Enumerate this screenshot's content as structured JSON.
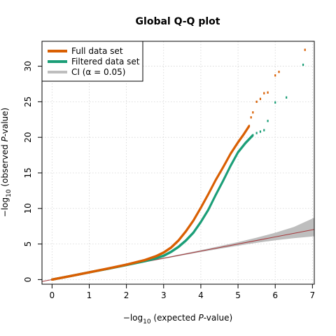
{
  "chart_data": {
    "type": "scatter",
    "title": "Global Q-Q plot",
    "xlabel": {
      "prefix": "−log",
      "sub": "10",
      "pre": " (expected ",
      "italic": "P",
      "post": "-value)"
    },
    "ylabel": {
      "prefix": "−log",
      "sub": "10",
      "pre": " (observed ",
      "italic": "P",
      "post": "-value)"
    },
    "xlim": [
      -0.27,
      7.05
    ],
    "ylim": [
      -0.65,
      33.5
    ],
    "xticks": [
      0,
      1,
      2,
      3,
      4,
      5,
      6,
      7
    ],
    "yticks": [
      0,
      5,
      10,
      15,
      20,
      25,
      30
    ],
    "grid": true,
    "legend_position": "top-left",
    "reference_line": {
      "from": [
        -0.27,
        -0.27
      ],
      "to": [
        7.05,
        7.05
      ],
      "color": "#a6383b"
    },
    "ci_band": {
      "name": "CI (α = 0.05)",
      "color": "#bebebe",
      "x": [
        0,
        2,
        3,
        4,
        5,
        5.5,
        6,
        6.5,
        7.05
      ],
      "lower": [
        0,
        1.96,
        2.92,
        3.88,
        4.76,
        5.17,
        5.52,
        5.82,
        6.08
      ],
      "upper": [
        0,
        2.04,
        3.08,
        4.14,
        5.27,
        5.9,
        6.58,
        7.4,
        8.7
      ]
    },
    "series": [
      {
        "name": "Full data set",
        "color": "#d95f02",
        "points": [
          [
            0,
            0
          ],
          [
            0.5,
            0.5
          ],
          [
            1,
            1.02
          ],
          [
            1.5,
            1.55
          ],
          [
            2,
            2.1
          ],
          [
            2.5,
            2.75
          ],
          [
            2.8,
            3.3
          ],
          [
            3,
            3.8
          ],
          [
            3.2,
            4.5
          ],
          [
            3.4,
            5.5
          ],
          [
            3.6,
            6.8
          ],
          [
            3.8,
            8.3
          ],
          [
            4,
            10.1
          ],
          [
            4.2,
            12
          ],
          [
            4.4,
            14
          ],
          [
            4.6,
            15.8
          ],
          [
            4.8,
            17.7
          ],
          [
            5,
            19.3
          ],
          [
            5.15,
            20.4
          ],
          [
            5.3,
            21.6
          ],
          [
            5.35,
            22.8
          ],
          [
            5.4,
            23.5
          ],
          [
            5.5,
            25
          ],
          [
            5.6,
            25.4
          ],
          [
            5.7,
            26.2
          ],
          [
            5.8,
            26.3
          ],
          [
            6,
            28.7
          ],
          [
            6.1,
            29.2
          ],
          [
            6.8,
            32.3
          ]
        ]
      },
      {
        "name": "Filtered data set",
        "color": "#1b9e77",
        "points": [
          [
            0,
            0
          ],
          [
            0.5,
            0.5
          ],
          [
            1,
            1.02
          ],
          [
            1.5,
            1.52
          ],
          [
            2,
            2.05
          ],
          [
            2.5,
            2.6
          ],
          [
            2.8,
            3
          ],
          [
            3,
            3.35
          ],
          [
            3.2,
            3.9
          ],
          [
            3.4,
            4.6
          ],
          [
            3.6,
            5.5
          ],
          [
            3.8,
            6.6
          ],
          [
            4,
            8.1
          ],
          [
            4.2,
            9.8
          ],
          [
            4.4,
            11.9
          ],
          [
            4.6,
            13.9
          ],
          [
            4.8,
            16
          ],
          [
            5,
            17.9
          ],
          [
            5.2,
            19.2
          ],
          [
            5.4,
            20.3
          ],
          [
            5.5,
            20.6
          ],
          [
            5.6,
            20.8
          ],
          [
            5.7,
            21
          ],
          [
            5.8,
            22.3
          ],
          [
            6,
            24.9
          ],
          [
            6.3,
            25.6
          ],
          [
            6.75,
            30.2
          ]
        ]
      }
    ]
  }
}
